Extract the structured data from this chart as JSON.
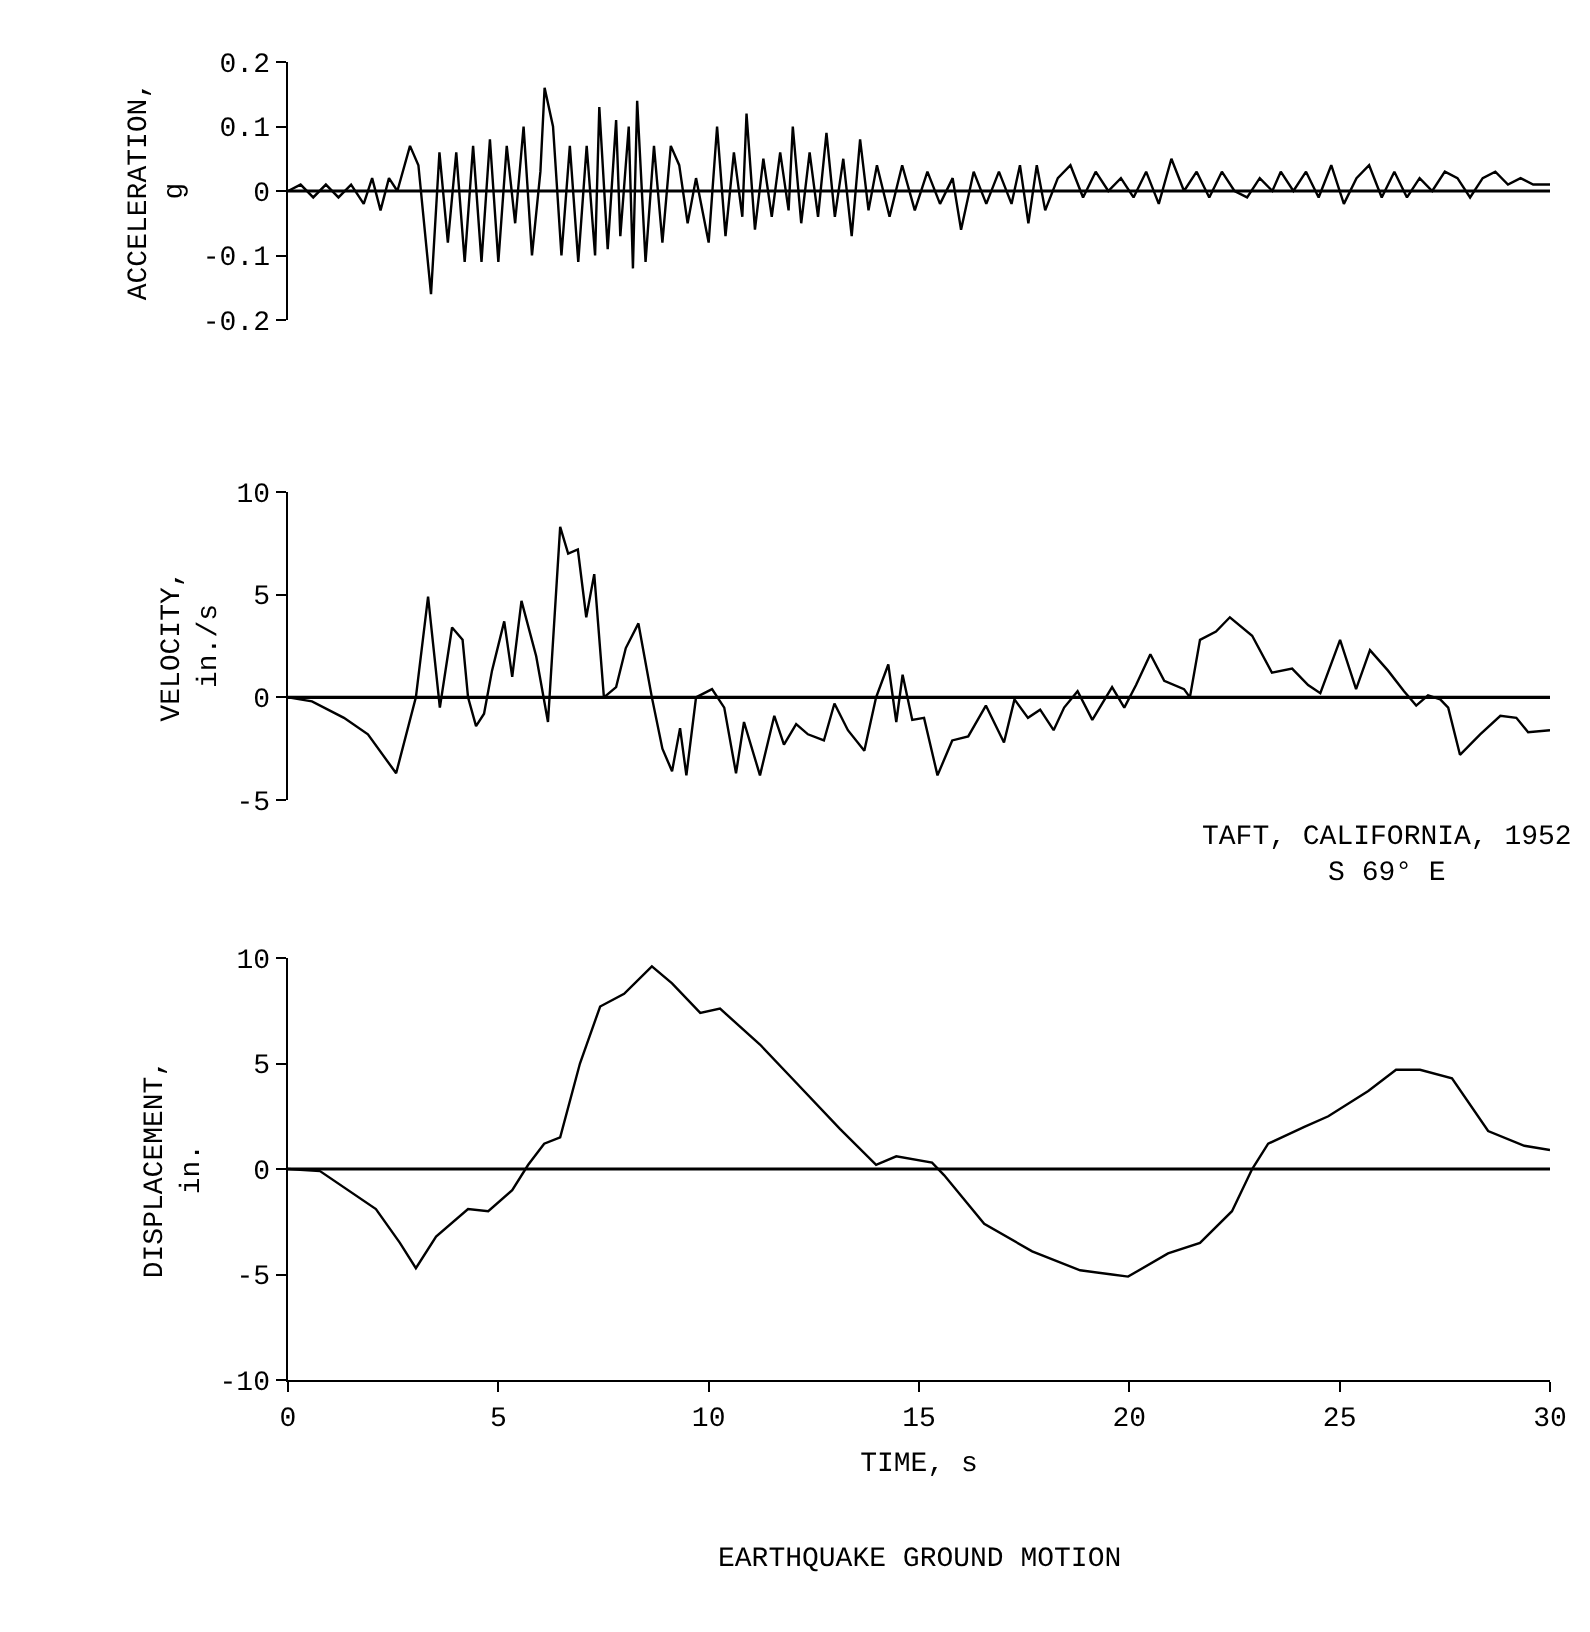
{
  "chart_data": [
    {
      "type": "line",
      "ylabel": "ACCELERATION,\ng",
      "color": "#000000",
      "xlim": [
        0,
        30
      ],
      "ylim": [
        -0.2,
        0.2
      ],
      "yticks": [
        -0.2,
        -0.1,
        0,
        0.1,
        0.2
      ],
      "tick_labels": "y",
      "ref_lines": [
        {
          "axis": "y",
          "value": 0
        }
      ],
      "x": [
        0,
        0.3,
        0.6,
        0.9,
        1.2,
        1.5,
        1.8,
        2.0,
        2.2,
        2.4,
        2.6,
        2.9,
        3.1,
        3.4,
        3.6,
        3.8,
        4.0,
        4.2,
        4.4,
        4.6,
        4.8,
        5.0,
        5.2,
        5.4,
        5.6,
        5.8,
        6.0,
        6.1,
        6.3,
        6.5,
        6.7,
        6.9,
        7.1,
        7.3,
        7.4,
        7.6,
        7.8,
        7.9,
        8.1,
        8.2,
        8.3,
        8.5,
        8.7,
        8.9,
        9.1,
        9.3,
        9.5,
        9.7,
        10.0,
        10.2,
        10.4,
        10.6,
        10.8,
        10.9,
        11.1,
        11.3,
        11.5,
        11.7,
        11.9,
        12.0,
        12.2,
        12.4,
        12.6,
        12.8,
        13.0,
        13.2,
        13.4,
        13.6,
        13.8,
        14.0,
        14.3,
        14.6,
        14.9,
        15.2,
        15.5,
        15.8,
        16.0,
        16.3,
        16.6,
        16.9,
        17.2,
        17.4,
        17.6,
        17.8,
        18.0,
        18.3,
        18.6,
        18.9,
        19.2,
        19.5,
        19.8,
        20.1,
        20.4,
        20.7,
        21.0,
        21.3,
        21.6,
        21.9,
        22.2,
        22.5,
        22.8,
        23.1,
        23.4,
        23.6,
        23.9,
        24.2,
        24.5,
        24.8,
        25.1,
        25.4,
        25.7,
        26.0,
        26.3,
        26.6,
        26.9,
        27.2,
        27.5,
        27.8,
        28.1,
        28.4,
        28.7,
        29.0,
        29.3,
        29.6,
        30.0
      ],
      "values": [
        0,
        0.01,
        -0.01,
        0.01,
        -0.01,
        0.01,
        -0.02,
        0.02,
        -0.03,
        0.02,
        0.0,
        0.07,
        0.04,
        -0.16,
        0.06,
        -0.08,
        0.06,
        -0.11,
        0.07,
        -0.11,
        0.08,
        -0.11,
        0.07,
        -0.05,
        0.1,
        -0.1,
        0.03,
        0.16,
        0.1,
        -0.1,
        0.07,
        -0.11,
        0.07,
        -0.1,
        0.13,
        -0.09,
        0.11,
        -0.07,
        0.1,
        -0.12,
        0.14,
        -0.11,
        0.07,
        -0.08,
        0.07,
        0.04,
        -0.05,
        0.02,
        -0.08,
        0.1,
        -0.07,
        0.06,
        -0.04,
        0.12,
        -0.06,
        0.05,
        -0.04,
        0.06,
        -0.03,
        0.1,
        -0.05,
        0.06,
        -0.04,
        0.09,
        -0.04,
        0.05,
        -0.07,
        0.08,
        -0.03,
        0.04,
        -0.04,
        0.04,
        -0.03,
        0.03,
        -0.02,
        0.02,
        -0.06,
        0.03,
        -0.02,
        0.03,
        -0.02,
        0.04,
        -0.05,
        0.04,
        -0.03,
        0.02,
        0.04,
        -0.01,
        0.03,
        0.0,
        0.02,
        -0.01,
        0.03,
        -0.02,
        0.05,
        0.0,
        0.03,
        -0.01,
        0.03,
        0.0,
        -0.01,
        0.02,
        0.0,
        0.03,
        0.0,
        0.03,
        -0.01,
        0.04,
        -0.02,
        0.02,
        0.04,
        -0.01,
        0.03,
        -0.01,
        0.02,
        0.0,
        0.03,
        0.02,
        -0.01,
        0.02,
        0.03,
        0.01,
        0.02,
        0.01,
        0.01
      ]
    },
    {
      "type": "line",
      "ylabel": "VELOCITY,\nin./s",
      "color": "#000000",
      "xlim": [
        0,
        30
      ],
      "ylim": [
        -5,
        10
      ],
      "yticks": [
        -5,
        0,
        5,
        10
      ],
      "tick_labels": "y",
      "ref_lines": [
        {
          "axis": "y",
          "value": 0
        }
      ],
      "annotations": [
        "TAFT, CALIFORNIA, 1952\nS 69° E"
      ],
      "x": [
        0,
        0.57,
        1.33,
        1.9,
        2.57,
        3.04,
        3.33,
        3.61,
        3.9,
        4.15,
        4.28,
        4.47,
        4.66,
        4.85,
        5.14,
        5.33,
        5.55,
        5.9,
        6.18,
        6.47,
        6.66,
        6.89,
        7.09,
        7.28,
        7.51,
        7.8,
        8.03,
        8.33,
        8.65,
        8.9,
        9.13,
        9.32,
        9.47,
        9.7,
        10.08,
        10.37,
        10.65,
        10.84,
        11.22,
        11.56,
        11.79,
        12.08,
        12.36,
        12.74,
        12.99,
        13.31,
        13.7,
        13.98,
        14.27,
        14.46,
        14.61,
        14.84,
        15.12,
        15.44,
        15.79,
        16.17,
        16.59,
        17.02,
        17.27,
        17.59,
        17.88,
        18.2,
        18.45,
        18.77,
        19.12,
        19.59,
        19.88,
        20.16,
        20.5,
        20.83,
        21.3,
        21.44,
        21.68,
        22.06,
        22.39,
        22.92,
        23.39,
        23.87,
        24.25,
        24.54,
        25.01,
        25.39,
        25.72,
        26.15,
        26.53,
        26.82,
        27.1,
        27.39,
        27.58,
        27.86,
        28.34,
        28.82,
        29.2,
        29.48,
        30.0
      ],
      "values": [
        0,
        -0.2,
        -1.0,
        -1.8,
        -3.7,
        0,
        4.9,
        -0.5,
        3.4,
        2.8,
        0,
        -1.4,
        -0.8,
        1.3,
        3.7,
        1.0,
        4.7,
        2.0,
        -1.2,
        8.3,
        7.0,
        7.2,
        3.9,
        6.0,
        0,
        0.5,
        2.4,
        3.6,
        0,
        -2.5,
        -3.6,
        -1.5,
        -3.8,
        0,
        0.4,
        -0.5,
        -3.7,
        -1.2,
        -3.8,
        -0.9,
        -2.3,
        -1.3,
        -1.8,
        -2.1,
        -0.3,
        -1.6,
        -2.6,
        0,
        1.6,
        -1.2,
        1.1,
        -1.1,
        -1.0,
        -3.8,
        -2.1,
        -1.9,
        -0.4,
        -2.2,
        -0.1,
        -1.0,
        -0.6,
        -1.6,
        -0.5,
        0.3,
        -1.1,
        0.5,
        -0.5,
        0.6,
        2.1,
        0.8,
        0.4,
        0,
        2.8,
        3.2,
        3.9,
        3.0,
        1.2,
        1.4,
        0.6,
        0.2,
        2.8,
        0.4,
        2.3,
        1.3,
        0.3,
        -0.4,
        0.1,
        -0.1,
        -0.5,
        -2.8,
        -1.8,
        -0.9,
        -1.0,
        -1.7,
        -1.6
      ]
    },
    {
      "type": "line",
      "ylabel": "DISPLACEMENT,\nin.",
      "xlabel": "TIME, s",
      "color": "#000000",
      "xlim": [
        0,
        30
      ],
      "xticks": [
        0,
        5,
        10,
        15,
        20,
        25,
        30
      ],
      "ylim": [
        -10,
        10
      ],
      "yticks": [
        -10,
        -5,
        0,
        5,
        10
      ],
      "ref_lines": [
        {
          "axis": "y",
          "value": 0
        }
      ],
      "annotations": [
        "EARTHQUAKE GROUND MOTION"
      ],
      "x": [
        0,
        0.76,
        2.09,
        2.66,
        3.04,
        3.52,
        4.28,
        4.76,
        5.33,
        5.71,
        6.09,
        6.47,
        6.94,
        7.42,
        7.99,
        8.65,
        9.13,
        9.8,
        10.27,
        11.22,
        11.98,
        13.12,
        13.98,
        14.46,
        15.31,
        15.6,
        16.55,
        17.69,
        18.83,
        19.59,
        19.97,
        20.92,
        21.68,
        22.44,
        22.92,
        23.3,
        24.16,
        24.73,
        25.68,
        26.34,
        26.91,
        27.67,
        28.53,
        29.39,
        30.0
      ],
      "values": [
        0,
        -0.1,
        -1.9,
        -3.5,
        -4.7,
        -3.2,
        -1.9,
        -2.0,
        -1.0,
        0.2,
        1.2,
        1.5,
        5.0,
        7.7,
        8.3,
        9.6,
        8.8,
        7.4,
        7.6,
        5.9,
        4.3,
        1.9,
        0.2,
        0.6,
        0.3,
        -0.3,
        -2.6,
        -3.9,
        -4.8,
        -5.0,
        -5.1,
        -4.0,
        -3.5,
        -2.0,
        0,
        1.2,
        2.0,
        2.5,
        3.7,
        4.7,
        4.7,
        4.3,
        1.8,
        1.1,
        0.9
      ]
    }
  ]
}
